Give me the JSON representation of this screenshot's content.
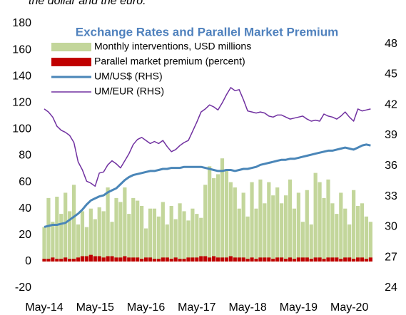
{
  "chart_data": {
    "type": "combo",
    "subtitle": "the dollar and the euro.",
    "title": "Exchange Rates and Parallel Market Premium",
    "categories": [
      "May-14",
      null,
      null,
      null,
      null,
      null,
      null,
      null,
      null,
      null,
      null,
      null,
      "May-15",
      null,
      null,
      null,
      null,
      null,
      null,
      null,
      null,
      null,
      null,
      null,
      "May-16",
      null,
      null,
      null,
      null,
      null,
      null,
      null,
      null,
      null,
      null,
      null,
      "May-17",
      null,
      null,
      null,
      null,
      null,
      null,
      null,
      null,
      null,
      null,
      null,
      "May-18",
      null,
      null,
      null,
      null,
      null,
      null,
      null,
      null,
      null,
      null,
      null,
      "May-19",
      null,
      null,
      null,
      null,
      null,
      null,
      null,
      null,
      null,
      null,
      null,
      "May-20",
      null,
      null,
      null,
      null,
      null
    ],
    "series": [
      {
        "name": "Monthly interventions, USD millions",
        "type": "bar",
        "color": "#c3d69b",
        "values": [
          26,
          48,
          30,
          49,
          36,
          52,
          38,
          58,
          28,
          38,
          26,
          40,
          32,
          41,
          38,
          56,
          30,
          48,
          45,
          56,
          36,
          48,
          46,
          42,
          25,
          40,
          40,
          34,
          45,
          28,
          42,
          32,
          44,
          38,
          31,
          40,
          36,
          33,
          58,
          72,
          63,
          66,
          78,
          70,
          60,
          56,
          40,
          52,
          34,
          60,
          40,
          62,
          44,
          60,
          50,
          56,
          44,
          50,
          62,
          40,
          52,
          30,
          54,
          28,
          67,
          60,
          48,
          62,
          44,
          36,
          52,
          40,
          28,
          54,
          42,
          44,
          34,
          30
        ]
      },
      {
        "name": "Parallel market premium (percent)",
        "type": "bar",
        "color": "#c00000",
        "values": [
          2,
          2,
          3,
          2,
          2,
          3,
          2,
          2,
          3,
          4,
          4,
          5,
          4,
          4,
          3,
          4,
          4,
          3,
          3,
          4,
          3,
          3,
          3,
          2,
          3,
          3,
          2,
          2,
          3,
          3,
          2,
          3,
          2,
          2,
          3,
          3,
          3,
          4,
          4,
          3,
          4,
          3,
          3,
          3,
          4,
          3,
          3,
          3,
          2,
          3,
          2,
          3,
          3,
          3,
          2,
          3,
          3,
          2,
          3,
          2,
          3,
          3,
          3,
          2,
          3,
          3,
          2,
          3,
          3,
          3,
          2,
          3,
          3,
          2,
          3,
          3,
          2,
          3
        ]
      },
      {
        "name": "UM/US$ (RHS)",
        "type": "line",
        "axis": "y2",
        "color": "#4a86b8",
        "width": 3,
        "values": [
          30.0,
          30.1,
          30.2,
          30.2,
          30.3,
          30.4,
          30.7,
          31.0,
          31.3,
          31.7,
          32.2,
          32.6,
          32.8,
          33.0,
          33.1,
          33.4,
          33.6,
          33.8,
          34.2,
          34.6,
          34.9,
          35.1,
          35.2,
          35.3,
          35.4,
          35.5,
          35.5,
          35.6,
          35.7,
          35.7,
          35.8,
          35.8,
          35.8,
          35.9,
          35.9,
          35.9,
          35.9,
          35.9,
          35.8,
          35.7,
          35.6,
          35.5,
          35.5,
          35.6,
          35.6,
          35.5,
          35.6,
          35.7,
          35.7,
          35.8,
          35.9,
          36.1,
          36.2,
          36.3,
          36.4,
          36.5,
          36.6,
          36.6,
          36.7,
          36.7,
          36.8,
          36.9,
          37.0,
          37.1,
          37.2,
          37.3,
          37.4,
          37.5,
          37.5,
          37.6,
          37.7,
          37.8,
          37.7,
          37.6,
          37.8,
          38.0,
          38.1,
          38.0
        ]
      },
      {
        "name": "UM/EUR (RHS)",
        "type": "line",
        "axis": "y2",
        "color": "#7030a0",
        "width": 1.5,
        "values": [
          41.6,
          41.3,
          40.8,
          39.9,
          39.5,
          39.3,
          39.0,
          38.3,
          36.4,
          35.6,
          34.5,
          34.3,
          34.0,
          35.3,
          35.4,
          36.1,
          36.5,
          36.2,
          35.8,
          36.5,
          37.2,
          38.1,
          38.6,
          38.8,
          38.5,
          38.2,
          38.4,
          38.2,
          38.5,
          37.9,
          37.4,
          37.6,
          38.0,
          38.3,
          38.5,
          39.4,
          40.3,
          41.3,
          41.6,
          42.0,
          41.8,
          41.5,
          42.2,
          43.0,
          43.7,
          43.4,
          43.5,
          42.5,
          41.4,
          41.3,
          41.2,
          41.3,
          41.2,
          40.9,
          40.8,
          41.0,
          41.0,
          40.8,
          40.6,
          40.7,
          40.8,
          40.9,
          40.6,
          40.4,
          40.5,
          40.4,
          41.1,
          40.9,
          40.8,
          40.6,
          40.9,
          41.3,
          40.8,
          40.4,
          41.6,
          41.4,
          41.5,
          41.6
        ]
      }
    ],
    "ylim": [
      -20,
      180
    ],
    "yticks": [
      -20,
      0,
      20,
      40,
      60,
      80,
      100,
      120,
      140,
      160,
      180
    ],
    "y2lim": [
      24,
      50
    ],
    "y2ticks": [
      24,
      27,
      30,
      33,
      36,
      39,
      42,
      45,
      48
    ],
    "grid": false
  }
}
